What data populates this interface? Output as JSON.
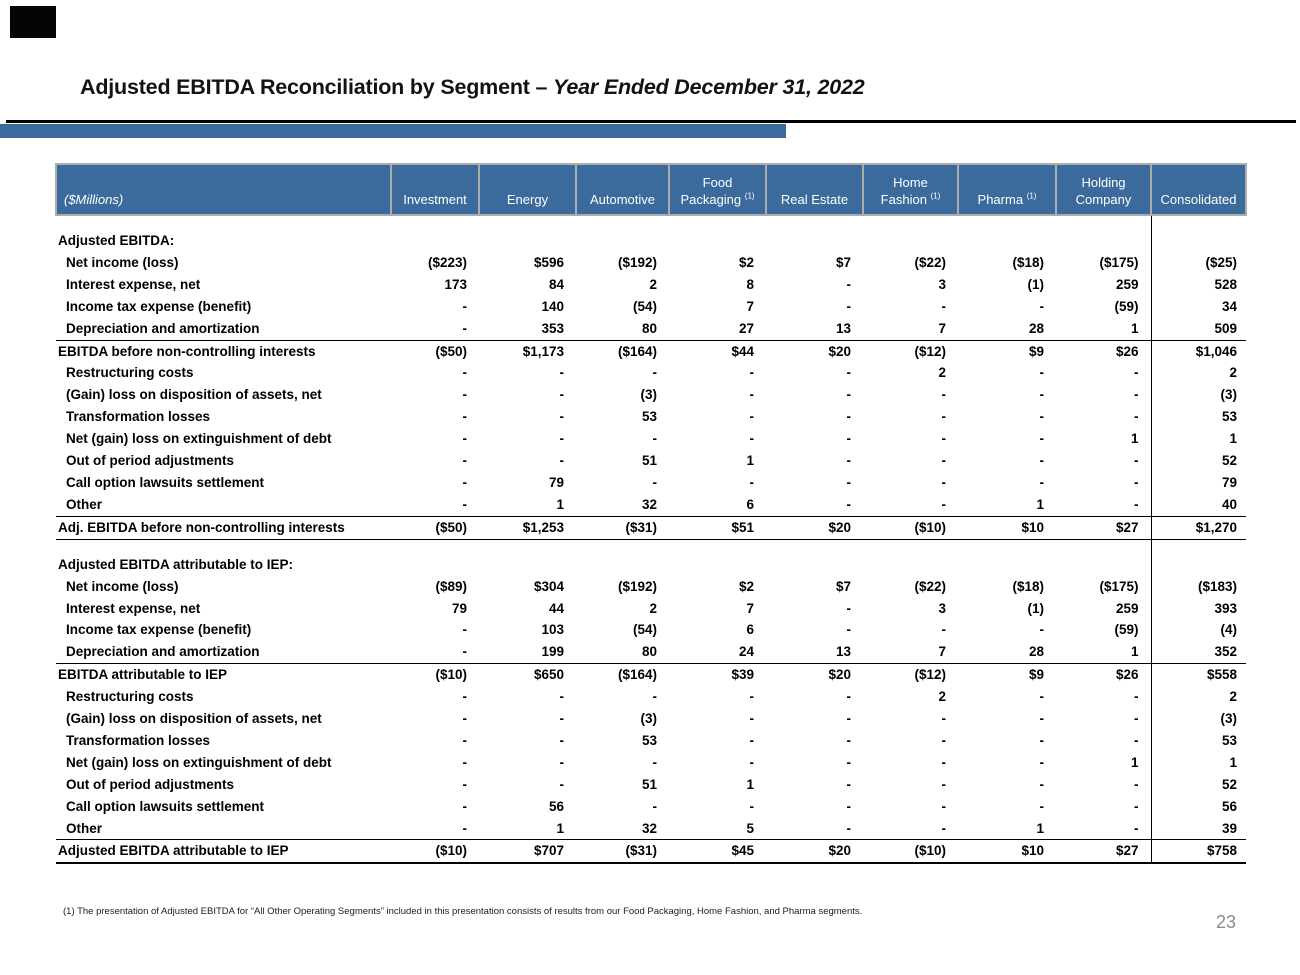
{
  "slide": {
    "title_main": "Adjusted EBITDA Reconciliation by Segment – ",
    "title_em": "Year Ended December 31, 2022",
    "footnote": "(1) The presentation of Adjusted EBITDA for “All Other Operating Segments” included in this presentation consists of results from our Food Packaging, Home Fashion, and Pharma segments.",
    "page_number": "23"
  },
  "colors": {
    "accent_blue": "#3B6A9C",
    "header_border_gray": "#ACACAC",
    "page_number_gray": "#8B8B8B"
  },
  "table": {
    "unit_label": "($Millions)",
    "columns": [
      {
        "line1": "Investment"
      },
      {
        "line1": "Energy"
      },
      {
        "line1": "Automotive"
      },
      {
        "line1": "Food",
        "line2": "Packaging",
        "sup": "(1)"
      },
      {
        "line1": "Real Estate"
      },
      {
        "line1": "Home",
        "line2": "Fashion",
        "sup": "(1)"
      },
      {
        "line1": "Pharma",
        "sup": "(1)"
      },
      {
        "line1": "Holding",
        "line2": "Company"
      },
      {
        "line1": "Consolidated"
      }
    ],
    "sections": [
      {
        "title": "Adjusted EBITDA:",
        "rows": [
          {
            "label": "Net income (loss)",
            "values": [
              "($223)",
              "$596",
              "($192)",
              "$2",
              "$7",
              "($22)",
              "($18)",
              "($175)",
              "($25)"
            ]
          },
          {
            "label": "Interest expense, net",
            "values": [
              "173",
              "84",
              "2",
              "8",
              "-",
              "3",
              "(1)",
              "259",
              "528"
            ]
          },
          {
            "label": "Income tax expense (benefit)",
            "values": [
              "-",
              "140",
              "(54)",
              "7",
              "-",
              "-",
              "-",
              "(59)",
              "34"
            ]
          },
          {
            "label": "Depreciation and amortization",
            "values": [
              "-",
              "353",
              "80",
              "27",
              "13",
              "7",
              "28",
              "1",
              "509"
            ],
            "line_below": "thin"
          },
          {
            "label": "EBITDA before non-controlling interests",
            "values": [
              "($50)",
              "$1,173",
              "($164)",
              "$44",
              "$20",
              "($12)",
              "$9",
              "$26",
              "$1,046"
            ],
            "total": true
          },
          {
            "label": "Restructuring costs",
            "values": [
              "-",
              "-",
              "-",
              "-",
              "-",
              "2",
              "-",
              "-",
              "2"
            ]
          },
          {
            "label": "(Gain) loss on disposition of assets, net",
            "values": [
              "-",
              "-",
              "(3)",
              "-",
              "-",
              "-",
              "-",
              "-",
              "(3)"
            ]
          },
          {
            "label": "Transformation losses",
            "values": [
              "-",
              "-",
              "53",
              "-",
              "-",
              "-",
              "-",
              "-",
              "53"
            ]
          },
          {
            "label": "Net (gain) loss on extinguishment of debt",
            "values": [
              "-",
              "-",
              "-",
              "-",
              "-",
              "-",
              "-",
              "1",
              "1"
            ]
          },
          {
            "label": "Out of period adjustments",
            "values": [
              "-",
              "-",
              "51",
              "1",
              "-",
              "-",
              "-",
              "-",
              "52"
            ]
          },
          {
            "label": "Call option lawsuits settlement",
            "values": [
              "-",
              "79",
              "-",
              "-",
              "-",
              "-",
              "-",
              "-",
              "79"
            ]
          },
          {
            "label": "Other",
            "values": [
              "-",
              "1",
              "32",
              "6",
              "-",
              "-",
              "1",
              "-",
              "40"
            ],
            "line_below": "thin"
          },
          {
            "label": "Adj. EBITDA before non-controlling interests",
            "values": [
              "($50)",
              "$1,253",
              "($31)",
              "$51",
              "$20",
              "($10)",
              "$10",
              "$27",
              "$1,270"
            ],
            "total": true,
            "line_below": "thin"
          }
        ]
      },
      {
        "title": "Adjusted EBITDA attributable to IEP:",
        "rows": [
          {
            "label": "Net income (loss)",
            "values": [
              "($89)",
              "$304",
              "($192)",
              "$2",
              "$7",
              "($22)",
              "($18)",
              "($175)",
              "($183)"
            ]
          },
          {
            "label": "Interest expense, net",
            "values": [
              "79",
              "44",
              "2",
              "7",
              "-",
              "3",
              "(1)",
              "259",
              "393"
            ]
          },
          {
            "label": "Income tax expense (benefit)",
            "values": [
              "-",
              "103",
              "(54)",
              "6",
              "-",
              "-",
              "-",
              "(59)",
              "(4)"
            ]
          },
          {
            "label": "Depreciation and amortization",
            "values": [
              "-",
              "199",
              "80",
              "24",
              "13",
              "7",
              "28",
              "1",
              "352"
            ],
            "line_below": "thin"
          },
          {
            "label": "EBITDA attributable to IEP",
            "values": [
              "($10)",
              "$650",
              "($164)",
              "$39",
              "$20",
              "($12)",
              "$9",
              "$26",
              "$558"
            ],
            "total": true
          },
          {
            "label": "Restructuring costs",
            "values": [
              "-",
              "-",
              "-",
              "-",
              "-",
              "2",
              "-",
              "-",
              "2"
            ]
          },
          {
            "label": "(Gain) loss on disposition of assets, net",
            "values": [
              "-",
              "-",
              "(3)",
              "-",
              "-",
              "-",
              "-",
              "-",
              "(3)"
            ]
          },
          {
            "label": "Transformation losses",
            "values": [
              "-",
              "-",
              "53",
              "-",
              "-",
              "-",
              "-",
              "-",
              "53"
            ]
          },
          {
            "label": "Net (gain) loss on extinguishment of debt",
            "values": [
              "-",
              "-",
              "-",
              "-",
              "-",
              "-",
              "-",
              "1",
              "1"
            ]
          },
          {
            "label": "Out of period adjustments",
            "values": [
              "-",
              "-",
              "51",
              "1",
              "-",
              "-",
              "-",
              "-",
              "52"
            ]
          },
          {
            "label": "Call option lawsuits settlement",
            "values": [
              "-",
              "56",
              "-",
              "-",
              "-",
              "-",
              "-",
              "-",
              "56"
            ]
          },
          {
            "label": "Other",
            "values": [
              "-",
              "1",
              "32",
              "5",
              "-",
              "-",
              "1",
              "-",
              "39"
            ],
            "line_below": "thin"
          },
          {
            "label": "Adjusted EBITDA attributable to IEP",
            "values": [
              "($10)",
              "$707",
              "($31)",
              "$45",
              "$20",
              "($10)",
              "$10",
              "$27",
              "$758"
            ],
            "total": true,
            "line_below": "thick"
          }
        ]
      }
    ]
  }
}
